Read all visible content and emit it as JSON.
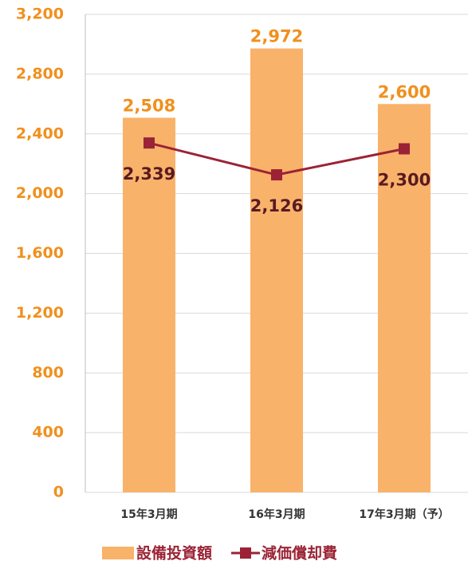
{
  "chart_data": {
    "type": "bar",
    "categories": [
      "15年3月期",
      "16年3月期",
      "17年3月期（予）"
    ],
    "series": [
      {
        "name": "設備投資額",
        "type": "bar",
        "color": "#f9b26a",
        "values": [
          2508,
          2972,
          2600
        ],
        "value_labels": [
          "2,508",
          "2,972",
          "2,600"
        ]
      },
      {
        "name": "減価償却費",
        "type": "line",
        "color": "#9b2335",
        "values": [
          2339,
          2126,
          2300
        ],
        "value_labels": [
          "2,339",
          "2,126",
          "2,300"
        ]
      }
    ],
    "ylim": [
      0,
      3200
    ],
    "yticks": [
      0,
      400,
      800,
      {
        "value": 1200,
        "label": "1,200"
      },
      {
        "value": 1600,
        "label": "1,600"
      },
      {
        "value": 2000,
        "label": "2,000"
      },
      {
        "value": 2400,
        "label": "2,400"
      },
      {
        "value": 2800,
        "label": "2,800"
      },
      {
        "value": 3200,
        "label": "3,200"
      }
    ],
    "grid": true
  }
}
